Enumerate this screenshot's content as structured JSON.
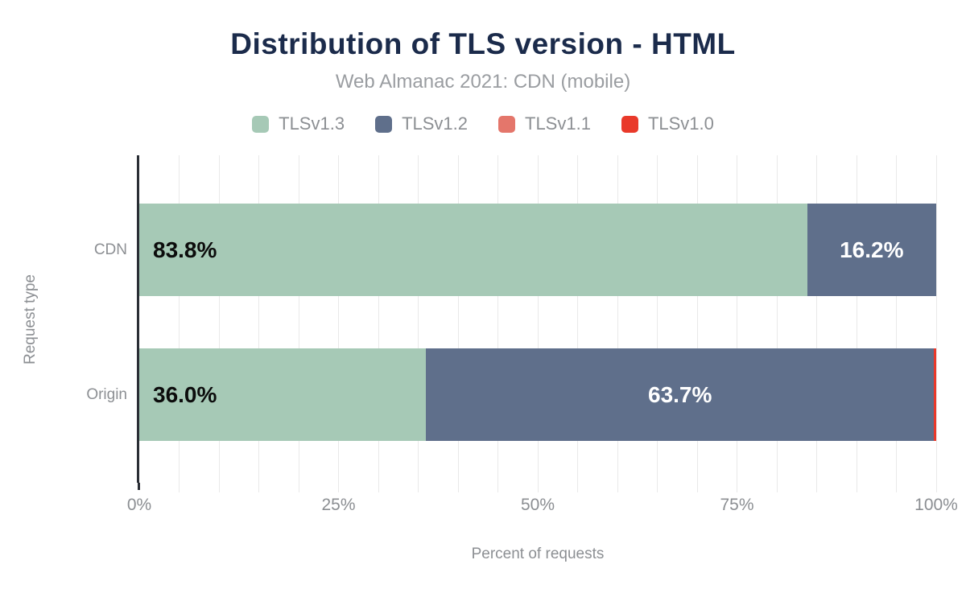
{
  "header": {
    "title": "Distribution of TLS version - HTML",
    "subtitle": "Web Almanac 2021: CDN (mobile)"
  },
  "chart_data": {
    "type": "bar",
    "variant": "horizontal-stacked",
    "title": "Distribution of TLS version - HTML",
    "subtitle": "Web Almanac 2021: CDN (mobile)",
    "categories": [
      "CDN",
      "Origin"
    ],
    "series": [
      {
        "name": "TLSv1.3",
        "color": "#a6c9b6",
        "values": [
          83.8,
          36.0
        ]
      },
      {
        "name": "TLSv1.2",
        "color": "#5f6f8b",
        "values": [
          16.2,
          63.7
        ]
      },
      {
        "name": "TLSv1.1",
        "color": "#e4766b",
        "values": [
          0,
          0
        ]
      },
      {
        "name": "TLSv1.0",
        "color": "#e9392a",
        "values": [
          0,
          0.3
        ]
      }
    ],
    "data_labels_shown": [
      "83.8%",
      "16.2%",
      "36.0%",
      "63.7%"
    ],
    "label_threshold_pct": 5,
    "xlabel": "Percent of requests",
    "ylabel": "Request type",
    "x_ticks": [
      "0%",
      "25%",
      "50%",
      "75%",
      "100%"
    ],
    "xlim": [
      0,
      100
    ],
    "grid": "vertical gridlines every 5%",
    "legend_position": "top"
  },
  "colors": {
    "title_text": "#1b2b4b",
    "muted_text": "#8c8f93",
    "axis_line": "#2a2e35",
    "gridline": "#e9e9e9",
    "background": "#ffffff"
  }
}
